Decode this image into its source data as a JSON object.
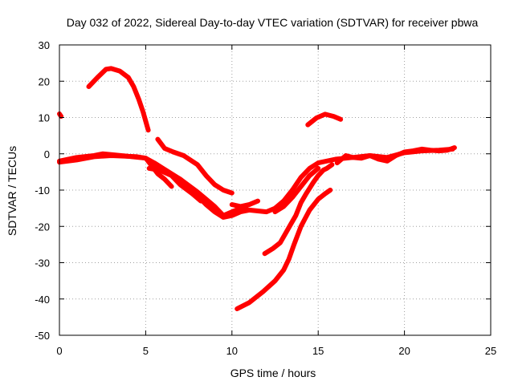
{
  "chart_data": {
    "type": "line",
    "title": "Day 032 of 2022, Sidereal Day-to-day VTEC variation (SDTVAR) for receiver pbwa",
    "xlabel": "GPS time / hours",
    "ylabel": "SDTVAR / TECUs",
    "xlim": [
      0,
      25
    ],
    "ylim": [
      -50,
      30
    ],
    "xticks": [
      0,
      5,
      10,
      15,
      20,
      25
    ],
    "yticks": [
      -50,
      -40,
      -30,
      -20,
      -10,
      0,
      10,
      20,
      30
    ],
    "grid": true,
    "legend": "none",
    "color": "#ff0000",
    "series": [
      {
        "name": "arc-1",
        "x": [
          0.0,
          0.1
        ],
        "y": [
          11,
          10.3
        ]
      },
      {
        "name": "arc-2",
        "x": [
          1.7,
          2.2,
          2.7,
          3.0,
          3.5,
          4.0,
          4.3,
          4.6,
          4.85,
          5.0,
          5.15
        ],
        "y": [
          18.5,
          21,
          23.3,
          23.5,
          22.8,
          21,
          18.5,
          15,
          11.5,
          9,
          6.5
        ]
      },
      {
        "name": "arc-3",
        "x": [
          0,
          1,
          2,
          2.5,
          3,
          4,
          4.5,
          5,
          5.3,
          5.7,
          6.1,
          6.5
        ],
        "y": [
          -2,
          -1,
          -0.5,
          0,
          -0.2,
          -0.7,
          -0.8,
          -1.2,
          -3,
          -5.5,
          -7,
          -9
        ]
      },
      {
        "name": "arc-4",
        "x": [
          0,
          1,
          2,
          3,
          4,
          5,
          5.5,
          6,
          7,
          8,
          9,
          9.5,
          10,
          10.5,
          11,
          12,
          12.5,
          13,
          13.5,
          14,
          14.5,
          15,
          16,
          17,
          18,
          19,
          20,
          21,
          22,
          22.8
        ],
        "y": [
          -2.3,
          -1.7,
          -0.8,
          -0.5,
          -0.7,
          -1.2,
          -2.5,
          -4,
          -7,
          -10.5,
          -14.5,
          -17,
          -16,
          -15,
          -15.5,
          -16,
          -15,
          -13,
          -10,
          -6.5,
          -4,
          -2.5,
          -1.5,
          -1,
          -0.5,
          -1,
          0.3,
          0.8,
          1,
          1.3
        ]
      },
      {
        "name": "arc-5",
        "x": [
          5.7,
          6.1,
          6.6,
          7.2,
          8,
          8.5,
          9.0,
          9.5,
          10.0
        ],
        "y": [
          4,
          1.5,
          0.5,
          -0.5,
          -3,
          -6,
          -8.5,
          -10,
          -10.8
        ]
      },
      {
        "name": "arc-6",
        "x": [
          5.3,
          6,
          7,
          7.5,
          8,
          8.5,
          9,
          9.5,
          10,
          10.5,
          11
        ],
        "y": [
          -3.5,
          -4.5,
          -7,
          -9,
          -11.5,
          -14,
          -16,
          -17.5,
          -17,
          -16,
          -15.5
        ]
      },
      {
        "name": "arc-7",
        "x": [
          5.2,
          5.8,
          6.5,
          7,
          7.7,
          8.2
        ],
        "y": [
          -4,
          -4.5,
          -6,
          -8.5,
          -11,
          -13
        ]
      },
      {
        "name": "arc-8",
        "x": [
          10.0,
          10.5,
          11.0,
          11.5
        ],
        "y": [
          -14,
          -14.5,
          -14,
          -13
        ]
      },
      {
        "name": "arc-9",
        "x": [
          11.9,
          12.4,
          12.8,
          13.1,
          13.4,
          13.7,
          14.0,
          14.3,
          14.7,
          15.0,
          15.3,
          15.5,
          15.8
        ],
        "y": [
          -27.5,
          -26,
          -24.5,
          -22,
          -19.5,
          -17,
          -13.5,
          -11,
          -8,
          -6,
          -4.5,
          -4,
          -3
        ]
      },
      {
        "name": "arc-10",
        "x": [
          10.3,
          11,
          11.8,
          12.5,
          13.0,
          13.3,
          13.6,
          14.0,
          14.5,
          15.0,
          15.4,
          15.7
        ],
        "y": [
          -42.7,
          -41,
          -38,
          -35,
          -32,
          -29,
          -25,
          -20,
          -15.5,
          -12.5,
          -11,
          -10
        ]
      },
      {
        "name": "arc-11",
        "x": [
          12.5,
          13,
          13.5,
          14,
          14.5,
          15
        ],
        "y": [
          -16,
          -14.5,
          -12,
          -9,
          -6,
          -4
        ]
      },
      {
        "name": "arc-12",
        "x": [
          14.4,
          14.9,
          15.4,
          15.9,
          16.3
        ],
        "y": [
          8,
          9.9,
          10.9,
          10.3,
          9.5
        ]
      },
      {
        "name": "arc-13",
        "x": [
          16.1,
          16.6,
          17,
          17.5,
          18,
          18.5,
          19,
          19.5,
          20,
          20.5,
          21,
          21.5,
          22,
          22.5,
          22.9
        ],
        "y": [
          -2.5,
          -0.5,
          -1,
          -1.2,
          -0.5,
          -1.5,
          -2,
          -0.5,
          0.5,
          0.8,
          1.3,
          1.0,
          0.8,
          1.0,
          1.7
        ]
      }
    ]
  }
}
